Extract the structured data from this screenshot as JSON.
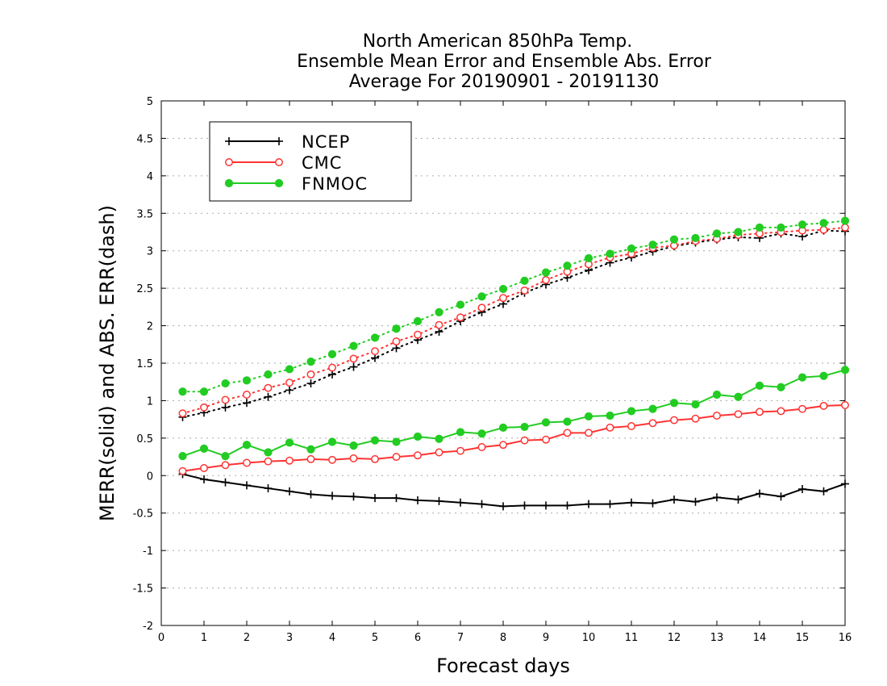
{
  "chart_data": {
    "type": "line",
    "title_lines": [
      "North American 850hPa Temp.",
      "Ensemble Mean Error and Ensemble Abs. Error",
      "Average For 20190901 - 20191130"
    ],
    "xlabel": "Forecast days",
    "ylabel": "MERR(solid) and ABS. ERR(dash)",
    "xlim": [
      0,
      16
    ],
    "ylim": [
      -2,
      5
    ],
    "x_ticks": [
      "0",
      "1",
      "2",
      "3",
      "4",
      "5",
      "6",
      "7",
      "8",
      "9",
      "10",
      "11",
      "12",
      "13",
      "14",
      "15",
      "16"
    ],
    "y_ticks": [
      "-2",
      "-1.5",
      "-1",
      "-0.5",
      "0",
      "0.5",
      "1",
      "1.5",
      "2",
      "2.5",
      "3",
      "3.5",
      "4",
      "4.5",
      "5"
    ],
    "y_tick_values": [
      -2,
      -1.5,
      -1,
      -0.5,
      0,
      0.5,
      1,
      1.5,
      2,
      2.5,
      3,
      3.5,
      4,
      4.5,
      5
    ],
    "grid": "horizontal dotted",
    "legend_position": "top-left",
    "x": [
      0.5,
      1,
      1.5,
      2,
      2.5,
      3,
      3.5,
      4,
      4.5,
      5,
      5.5,
      6,
      6.5,
      7,
      7.5,
      8,
      8.5,
      9,
      9.5,
      10,
      10.5,
      11,
      11.5,
      12,
      12.5,
      13,
      13.5,
      14,
      14.5,
      15,
      15.5,
      16
    ],
    "series": [
      {
        "name": "NCEP",
        "color": "#000000",
        "marker": "plus",
        "mean_error": [
          0.02,
          -0.05,
          -0.09,
          -0.13,
          -0.17,
          -0.21,
          -0.25,
          -0.27,
          -0.28,
          -0.3,
          -0.3,
          -0.33,
          -0.34,
          -0.36,
          -0.38,
          -0.41,
          -0.4,
          -0.4,
          -0.4,
          -0.38,
          -0.38,
          -0.36,
          -0.37,
          -0.32,
          -0.35,
          -0.29,
          -0.32,
          -0.24,
          -0.28,
          -0.18,
          -0.21,
          -0.11
        ],
        "abs_error": [
          0.78,
          0.84,
          0.91,
          0.97,
          1.05,
          1.14,
          1.23,
          1.35,
          1.45,
          1.57,
          1.7,
          1.81,
          1.92,
          2.06,
          2.18,
          2.29,
          2.44,
          2.55,
          2.64,
          2.74,
          2.84,
          2.91,
          2.99,
          3.06,
          3.11,
          3.15,
          3.18,
          3.17,
          3.23,
          3.19,
          3.27,
          3.26
        ]
      },
      {
        "name": "CMC",
        "color": "#ff3333",
        "marker": "open-circle",
        "mean_error": [
          0.06,
          0.1,
          0.14,
          0.17,
          0.19,
          0.2,
          0.22,
          0.21,
          0.23,
          0.22,
          0.25,
          0.27,
          0.31,
          0.33,
          0.38,
          0.41,
          0.47,
          0.48,
          0.57,
          0.57,
          0.64,
          0.66,
          0.7,
          0.74,
          0.76,
          0.8,
          0.82,
          0.85,
          0.86,
          0.89,
          0.93,
          0.94
        ],
        "abs_error": [
          0.83,
          0.91,
          1.01,
          1.08,
          1.17,
          1.24,
          1.35,
          1.44,
          1.56,
          1.66,
          1.79,
          1.88,
          2.01,
          2.11,
          2.24,
          2.37,
          2.47,
          2.61,
          2.72,
          2.82,
          2.91,
          2.96,
          3.04,
          3.07,
          3.13,
          3.16,
          3.21,
          3.23,
          3.25,
          3.27,
          3.28,
          3.31
        ]
      },
      {
        "name": "FNMOC",
        "color": "#22cc22",
        "marker": "filled-circle",
        "mean_error": [
          0.26,
          0.36,
          0.26,
          0.41,
          0.31,
          0.44,
          0.35,
          0.45,
          0.4,
          0.47,
          0.45,
          0.52,
          0.49,
          0.58,
          0.56,
          0.64,
          0.65,
          0.71,
          0.72,
          0.79,
          0.8,
          0.86,
          0.89,
          0.97,
          0.95,
          1.08,
          1.05,
          1.2,
          1.18,
          1.31,
          1.33,
          1.41
        ],
        "abs_error": [
          1.12,
          1.12,
          1.23,
          1.27,
          1.35,
          1.42,
          1.52,
          1.62,
          1.73,
          1.84,
          1.96,
          2.06,
          2.18,
          2.28,
          2.39,
          2.49,
          2.6,
          2.71,
          2.8,
          2.9,
          2.96,
          3.03,
          3.08,
          3.15,
          3.17,
          3.23,
          3.25,
          3.31,
          3.31,
          3.35,
          3.37,
          3.4
        ]
      }
    ]
  }
}
